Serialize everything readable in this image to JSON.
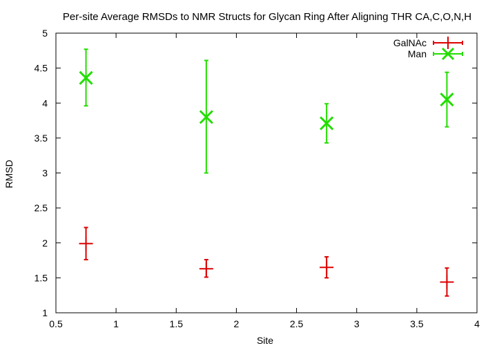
{
  "chart_data": {
    "type": "scatter",
    "title": "Per-site Average RMSDs to NMR Structs for Glycan Ring After Aligning THR CA,C,O,N,H",
    "xlabel": "Site",
    "ylabel": "RMSD",
    "xlim": [
      0.5,
      4
    ],
    "ylim": [
      1,
      5
    ],
    "xticks": [
      "0.5",
      "1",
      "1.5",
      "2",
      "2.5",
      "3",
      "3.5",
      "4"
    ],
    "yticks": [
      "1",
      "1.5",
      "2",
      "2.5",
      "3",
      "3.5",
      "4",
      "4.5",
      "5"
    ],
    "grid": false,
    "legend_position": "top-right",
    "series": [
      {
        "name": "GalNAc",
        "color": "#dd0000",
        "marker": "plus",
        "x": [
          0.75,
          1.75,
          2.75,
          3.75
        ],
        "y": [
          1.99,
          1.63,
          1.65,
          1.44
        ],
        "err_low": [
          1.76,
          1.51,
          1.5,
          1.24
        ],
        "err_high": [
          2.22,
          1.76,
          1.8,
          1.64
        ]
      },
      {
        "name": "Man",
        "color": "#22dd00",
        "marker": "cross",
        "x": [
          0.75,
          1.75,
          2.75,
          3.75
        ],
        "y": [
          4.36,
          3.8,
          3.71,
          4.05
        ],
        "err_low": [
          3.96,
          3.0,
          3.43,
          3.66
        ],
        "err_high": [
          4.77,
          4.61,
          3.99,
          4.44
        ]
      }
    ]
  }
}
